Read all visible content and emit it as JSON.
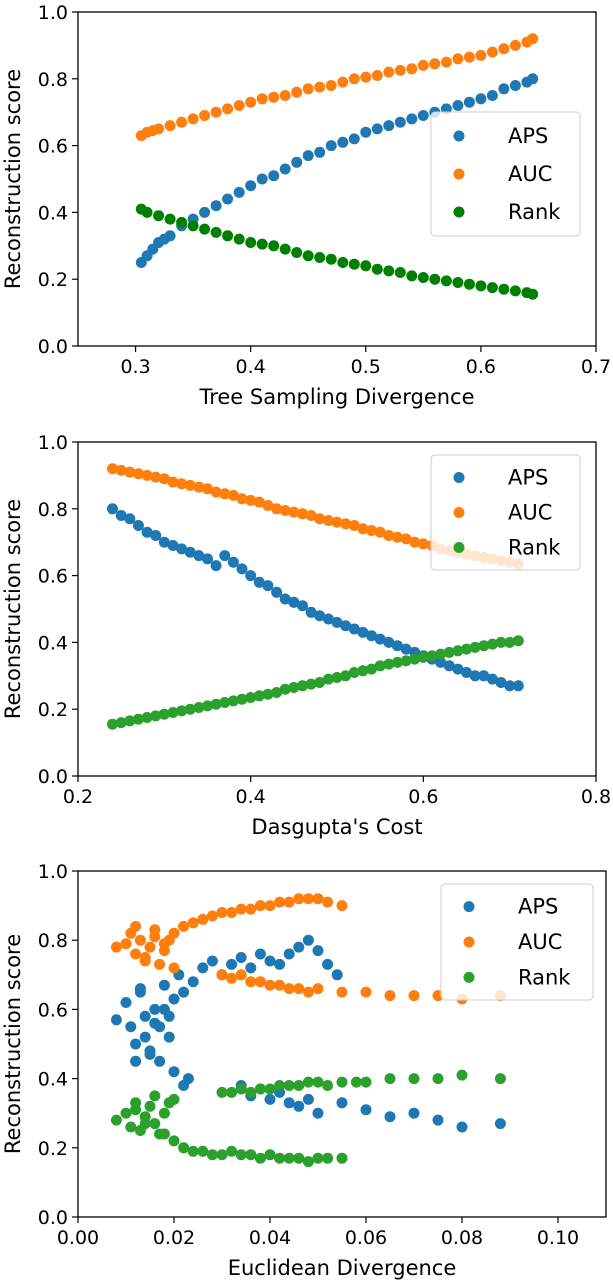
{
  "chart_data": [
    {
      "type": "scatter",
      "title": "",
      "xlabel": "Tree Sampling Divergence",
      "ylabel": "Reconstruction score",
      "xlim": [
        0.25,
        0.7
      ],
      "ylim": [
        0.0,
        1.0
      ],
      "xticks": [
        0.3,
        0.4,
        0.5,
        0.6,
        0.7
      ],
      "xtick_labels": [
        "0.3",
        "0.4",
        "0.5",
        "0.6",
        "0.7"
      ],
      "yticks": [
        0.0,
        0.2,
        0.4,
        0.6,
        0.8,
        1.0
      ],
      "ytick_labels": [
        "0.0",
        "0.2",
        "0.4",
        "0.6",
        "0.8",
        "1.0"
      ],
      "legend_position": "center-right",
      "series": [
        {
          "name": "APS",
          "color": "#1f77b4",
          "x": [
            0.305,
            0.31,
            0.315,
            0.32,
            0.325,
            0.33,
            0.34,
            0.35,
            0.36,
            0.37,
            0.38,
            0.39,
            0.4,
            0.41,
            0.42,
            0.43,
            0.44,
            0.45,
            0.46,
            0.47,
            0.48,
            0.49,
            0.5,
            0.51,
            0.52,
            0.53,
            0.54,
            0.55,
            0.56,
            0.57,
            0.58,
            0.59,
            0.6,
            0.61,
            0.62,
            0.63,
            0.64,
            0.645
          ],
          "y": [
            0.25,
            0.27,
            0.29,
            0.31,
            0.32,
            0.33,
            0.36,
            0.38,
            0.4,
            0.42,
            0.44,
            0.46,
            0.48,
            0.5,
            0.51,
            0.53,
            0.55,
            0.57,
            0.58,
            0.6,
            0.61,
            0.62,
            0.64,
            0.65,
            0.66,
            0.67,
            0.68,
            0.69,
            0.7,
            0.71,
            0.72,
            0.73,
            0.74,
            0.75,
            0.77,
            0.78,
            0.79,
            0.8
          ]
        },
        {
          "name": "AUC",
          "color": "#ff7f0e",
          "x": [
            0.305,
            0.31,
            0.315,
            0.32,
            0.33,
            0.34,
            0.35,
            0.36,
            0.37,
            0.38,
            0.39,
            0.4,
            0.41,
            0.42,
            0.43,
            0.44,
            0.45,
            0.46,
            0.47,
            0.48,
            0.49,
            0.5,
            0.51,
            0.52,
            0.53,
            0.54,
            0.55,
            0.56,
            0.57,
            0.58,
            0.59,
            0.6,
            0.61,
            0.62,
            0.63,
            0.64,
            0.645
          ],
          "y": [
            0.63,
            0.64,
            0.645,
            0.65,
            0.66,
            0.67,
            0.68,
            0.69,
            0.7,
            0.71,
            0.72,
            0.73,
            0.74,
            0.745,
            0.75,
            0.76,
            0.77,
            0.775,
            0.78,
            0.79,
            0.8,
            0.805,
            0.81,
            0.82,
            0.825,
            0.83,
            0.84,
            0.845,
            0.85,
            0.86,
            0.865,
            0.87,
            0.88,
            0.89,
            0.9,
            0.91,
            0.92
          ]
        },
        {
          "name": "Rank",
          "color": "#008000",
          "x": [
            0.305,
            0.31,
            0.32,
            0.33,
            0.34,
            0.35,
            0.36,
            0.37,
            0.38,
            0.39,
            0.4,
            0.41,
            0.42,
            0.43,
            0.44,
            0.45,
            0.46,
            0.47,
            0.48,
            0.49,
            0.5,
            0.51,
            0.52,
            0.53,
            0.54,
            0.55,
            0.56,
            0.57,
            0.58,
            0.59,
            0.6,
            0.61,
            0.62,
            0.63,
            0.64,
            0.645
          ],
          "y": [
            0.41,
            0.4,
            0.39,
            0.38,
            0.37,
            0.36,
            0.35,
            0.34,
            0.33,
            0.32,
            0.31,
            0.305,
            0.3,
            0.29,
            0.28,
            0.27,
            0.265,
            0.26,
            0.25,
            0.245,
            0.24,
            0.23,
            0.225,
            0.22,
            0.21,
            0.205,
            0.2,
            0.195,
            0.19,
            0.185,
            0.18,
            0.175,
            0.17,
            0.165,
            0.16,
            0.155
          ]
        }
      ]
    },
    {
      "type": "scatter",
      "title": "",
      "xlabel": "Dasgupta's Cost",
      "ylabel": "Reconstruction score",
      "xlim": [
        0.2,
        0.8
      ],
      "ylim": [
        0.0,
        1.0
      ],
      "xticks": [
        0.2,
        0.4,
        0.6,
        0.8
      ],
      "xtick_labels": [
        "0.2",
        "0.4",
        "0.6",
        "0.8"
      ],
      "yticks": [
        0.0,
        0.2,
        0.4,
        0.6,
        0.8,
        1.0
      ],
      "ytick_labels": [
        "0.0",
        "0.2",
        "0.4",
        "0.6",
        "0.8",
        "1.0"
      ],
      "legend_position": "upper-right",
      "series": [
        {
          "name": "APS",
          "color": "#1f77b4",
          "x": [
            0.24,
            0.25,
            0.26,
            0.27,
            0.28,
            0.29,
            0.3,
            0.31,
            0.32,
            0.33,
            0.34,
            0.35,
            0.36,
            0.37,
            0.38,
            0.39,
            0.4,
            0.41,
            0.42,
            0.43,
            0.44,
            0.45,
            0.46,
            0.47,
            0.48,
            0.49,
            0.5,
            0.51,
            0.52,
            0.53,
            0.54,
            0.55,
            0.56,
            0.57,
            0.58,
            0.59,
            0.6,
            0.61,
            0.62,
            0.63,
            0.64,
            0.65,
            0.66,
            0.67,
            0.68,
            0.69,
            0.7,
            0.71
          ],
          "y": [
            0.8,
            0.78,
            0.77,
            0.75,
            0.73,
            0.72,
            0.7,
            0.69,
            0.68,
            0.67,
            0.66,
            0.65,
            0.63,
            0.66,
            0.64,
            0.62,
            0.6,
            0.58,
            0.57,
            0.55,
            0.53,
            0.52,
            0.51,
            0.49,
            0.48,
            0.47,
            0.46,
            0.45,
            0.44,
            0.43,
            0.42,
            0.41,
            0.4,
            0.39,
            0.38,
            0.37,
            0.36,
            0.35,
            0.34,
            0.33,
            0.32,
            0.31,
            0.3,
            0.3,
            0.29,
            0.28,
            0.27,
            0.27
          ]
        },
        {
          "name": "AUC",
          "color": "#ff7f0e",
          "x": [
            0.24,
            0.25,
            0.26,
            0.27,
            0.28,
            0.29,
            0.3,
            0.31,
            0.32,
            0.33,
            0.34,
            0.35,
            0.36,
            0.37,
            0.38,
            0.39,
            0.4,
            0.41,
            0.42,
            0.43,
            0.44,
            0.45,
            0.46,
            0.47,
            0.48,
            0.49,
            0.5,
            0.51,
            0.52,
            0.53,
            0.54,
            0.55,
            0.56,
            0.57,
            0.58,
            0.59,
            0.6,
            0.61,
            0.62,
            0.63,
            0.64,
            0.65,
            0.66,
            0.67,
            0.68,
            0.69,
            0.7,
            0.71
          ],
          "y": [
            0.92,
            0.915,
            0.91,
            0.905,
            0.9,
            0.895,
            0.89,
            0.88,
            0.875,
            0.87,
            0.865,
            0.86,
            0.85,
            0.845,
            0.84,
            0.83,
            0.825,
            0.82,
            0.81,
            0.8,
            0.795,
            0.79,
            0.785,
            0.78,
            0.77,
            0.765,
            0.76,
            0.755,
            0.75,
            0.74,
            0.735,
            0.73,
            0.72,
            0.715,
            0.71,
            0.7,
            0.695,
            0.69,
            0.68,
            0.675,
            0.67,
            0.665,
            0.66,
            0.655,
            0.65,
            0.645,
            0.64,
            0.635
          ]
        },
        {
          "name": "Rank",
          "color": "#2ca02c",
          "x": [
            0.24,
            0.25,
            0.26,
            0.27,
            0.28,
            0.29,
            0.3,
            0.31,
            0.32,
            0.33,
            0.34,
            0.35,
            0.36,
            0.37,
            0.38,
            0.39,
            0.4,
            0.41,
            0.42,
            0.43,
            0.44,
            0.45,
            0.46,
            0.47,
            0.48,
            0.49,
            0.5,
            0.51,
            0.52,
            0.53,
            0.54,
            0.55,
            0.56,
            0.57,
            0.58,
            0.59,
            0.6,
            0.61,
            0.62,
            0.63,
            0.64,
            0.65,
            0.66,
            0.67,
            0.68,
            0.69,
            0.7,
            0.71
          ],
          "y": [
            0.155,
            0.16,
            0.165,
            0.17,
            0.175,
            0.18,
            0.185,
            0.19,
            0.195,
            0.2,
            0.205,
            0.21,
            0.215,
            0.22,
            0.225,
            0.23,
            0.235,
            0.24,
            0.245,
            0.25,
            0.26,
            0.265,
            0.27,
            0.275,
            0.28,
            0.29,
            0.295,
            0.3,
            0.31,
            0.315,
            0.32,
            0.33,
            0.335,
            0.34,
            0.345,
            0.35,
            0.355,
            0.36,
            0.365,
            0.37,
            0.375,
            0.38,
            0.385,
            0.39,
            0.395,
            0.4,
            0.4,
            0.405
          ]
        }
      ]
    },
    {
      "type": "scatter",
      "title": "",
      "xlabel": "Euclidean Divergence",
      "ylabel": "Reconstruction score",
      "xlim": [
        0.0,
        0.11
      ],
      "ylim": [
        0.0,
        1.0
      ],
      "xticks": [
        0.0,
        0.02,
        0.04,
        0.06,
        0.08,
        0.1
      ],
      "xtick_labels": [
        "0.00",
        "0.02",
        "0.04",
        "0.06",
        "0.08",
        "0.10"
      ],
      "yticks": [
        0.0,
        0.2,
        0.4,
        0.6,
        0.8,
        1.0
      ],
      "ytick_labels": [
        "0.0",
        "0.2",
        "0.4",
        "0.6",
        "0.8",
        "1.0"
      ],
      "legend_position": "upper-right",
      "series": [
        {
          "name": "APS",
          "color": "#1f77b4",
          "x": [
            0.008,
            0.01,
            0.011,
            0.012,
            0.013,
            0.014,
            0.015,
            0.016,
            0.017,
            0.018,
            0.019,
            0.02,
            0.021,
            0.022,
            0.023,
            0.024,
            0.026,
            0.028,
            0.03,
            0.032,
            0.034,
            0.036,
            0.038,
            0.04,
            0.042,
            0.044,
            0.046,
            0.048,
            0.05,
            0.052,
            0.054,
            0.034,
            0.036,
            0.038,
            0.04,
            0.042,
            0.044,
            0.046,
            0.048,
            0.05,
            0.055,
            0.06,
            0.065,
            0.07,
            0.075,
            0.08,
            0.088,
            0.012,
            0.014,
            0.016,
            0.018,
            0.02,
            0.022,
            0.013,
            0.015,
            0.017,
            0.019
          ],
          "y": [
            0.57,
            0.62,
            0.55,
            0.5,
            0.65,
            0.58,
            0.48,
            0.6,
            0.45,
            0.67,
            0.52,
            0.42,
            0.7,
            0.65,
            0.4,
            0.68,
            0.72,
            0.74,
            0.7,
            0.73,
            0.75,
            0.72,
            0.76,
            0.74,
            0.73,
            0.76,
            0.78,
            0.8,
            0.77,
            0.73,
            0.7,
            0.38,
            0.35,
            0.37,
            0.34,
            0.36,
            0.33,
            0.32,
            0.34,
            0.3,
            0.33,
            0.31,
            0.29,
            0.3,
            0.28,
            0.26,
            0.27,
            0.45,
            0.52,
            0.56,
            0.6,
            0.63,
            0.38,
            0.66,
            0.47,
            0.55,
            0.58
          ]
        },
        {
          "name": "AUC",
          "color": "#ff7f0e",
          "x": [
            0.008,
            0.01,
            0.011,
            0.012,
            0.013,
            0.014,
            0.015,
            0.016,
            0.017,
            0.018,
            0.019,
            0.02,
            0.022,
            0.024,
            0.026,
            0.028,
            0.03,
            0.032,
            0.034,
            0.036,
            0.038,
            0.04,
            0.042,
            0.044,
            0.046,
            0.048,
            0.05,
            0.052,
            0.055,
            0.03,
            0.032,
            0.034,
            0.036,
            0.038,
            0.04,
            0.042,
            0.044,
            0.046,
            0.048,
            0.05,
            0.055,
            0.06,
            0.065,
            0.07,
            0.075,
            0.08,
            0.088,
            0.012,
            0.014,
            0.016,
            0.018,
            0.02
          ],
          "y": [
            0.78,
            0.79,
            0.82,
            0.76,
            0.8,
            0.74,
            0.78,
            0.81,
            0.73,
            0.77,
            0.8,
            0.72,
            0.84,
            0.85,
            0.86,
            0.87,
            0.88,
            0.88,
            0.89,
            0.89,
            0.9,
            0.9,
            0.91,
            0.91,
            0.92,
            0.92,
            0.92,
            0.91,
            0.9,
            0.7,
            0.69,
            0.7,
            0.68,
            0.68,
            0.67,
            0.67,
            0.66,
            0.66,
            0.65,
            0.66,
            0.65,
            0.65,
            0.64,
            0.64,
            0.64,
            0.63,
            0.64,
            0.84,
            0.75,
            0.83,
            0.79,
            0.82
          ]
        },
        {
          "name": "Rank",
          "color": "#2ca02c",
          "x": [
            0.008,
            0.01,
            0.011,
            0.012,
            0.013,
            0.014,
            0.015,
            0.016,
            0.017,
            0.018,
            0.019,
            0.02,
            0.022,
            0.024,
            0.026,
            0.028,
            0.03,
            0.032,
            0.034,
            0.036,
            0.038,
            0.04,
            0.042,
            0.044,
            0.046,
            0.048,
            0.05,
            0.052,
            0.055,
            0.03,
            0.032,
            0.034,
            0.036,
            0.038,
            0.04,
            0.042,
            0.044,
            0.046,
            0.048,
            0.05,
            0.052,
            0.055,
            0.058,
            0.06,
            0.065,
            0.07,
            0.075,
            0.08,
            0.088,
            0.012,
            0.014,
            0.016,
            0.018,
            0.02
          ],
          "y": [
            0.28,
            0.3,
            0.26,
            0.31,
            0.25,
            0.29,
            0.32,
            0.27,
            0.24,
            0.3,
            0.33,
            0.22,
            0.2,
            0.19,
            0.19,
            0.18,
            0.18,
            0.19,
            0.18,
            0.18,
            0.17,
            0.18,
            0.17,
            0.17,
            0.17,
            0.16,
            0.17,
            0.17,
            0.17,
            0.36,
            0.36,
            0.37,
            0.36,
            0.37,
            0.37,
            0.38,
            0.38,
            0.38,
            0.39,
            0.39,
            0.38,
            0.39,
            0.39,
            0.39,
            0.4,
            0.4,
            0.4,
            0.41,
            0.4,
            0.33,
            0.27,
            0.35,
            0.24,
            0.34
          ]
        }
      ]
    }
  ]
}
